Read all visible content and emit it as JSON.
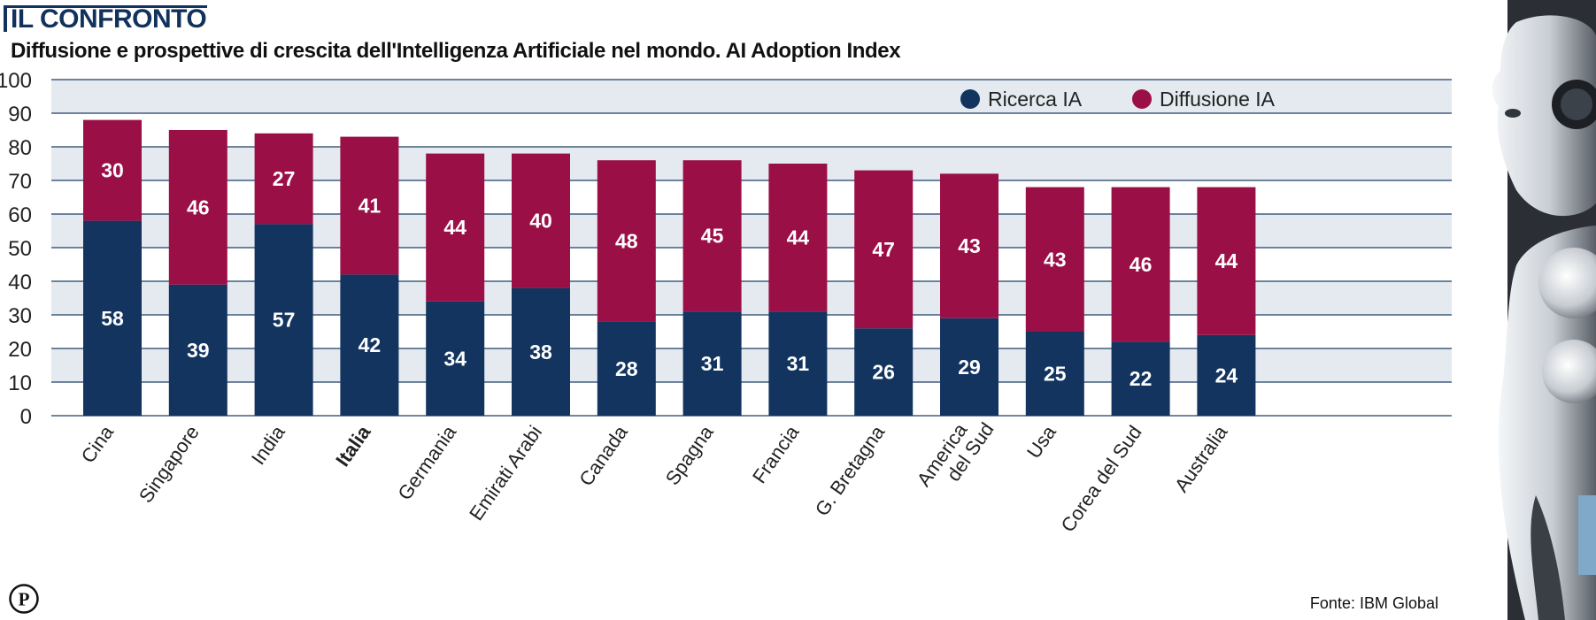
{
  "header": {
    "kicker": "IL CONFRONTO",
    "subtitle": "Diffusione e prospettive di crescita dell'Intelligenza Artificiale nel mondo. AI Adoption Index"
  },
  "source": "Fonte: IBM Global",
  "colors": {
    "ricerca": "#12345f",
    "diffusione": "#9b0f47",
    "grid_bg": "#e4eaf0",
    "grid_line": "#1e3d66",
    "title": "#12325e"
  },
  "chart_data": {
    "type": "bar",
    "stacked": true,
    "title": "Diffusione e prospettive di crescita dell'Intelligenza Artificiale nel mondo. AI Adoption Index",
    "categories": [
      "Cina",
      "Singapore",
      "India",
      "Italia",
      "Germania",
      "Emirati Arabi",
      "Canada",
      "Spagna",
      "Francia",
      "G. Bretagna",
      "America del Sud",
      "Usa",
      "Corea del Sud",
      "Australia"
    ],
    "highlight": "Italia",
    "series": [
      {
        "name": "Ricerca IA",
        "values": [
          58,
          39,
          57,
          42,
          34,
          38,
          28,
          31,
          31,
          26,
          29,
          25,
          22,
          24
        ]
      },
      {
        "name": "Diffusione IA",
        "values": [
          30,
          46,
          27,
          41,
          44,
          40,
          48,
          45,
          44,
          47,
          43,
          43,
          46,
          44
        ]
      }
    ],
    "yticks": [
      0,
      10,
      20,
      30,
      40,
      50,
      60,
      70,
      80,
      90,
      100
    ],
    "ylim": [
      0,
      100
    ],
    "legend": "top-right",
    "grid": true,
    "xlabel": "",
    "ylabel": ""
  }
}
